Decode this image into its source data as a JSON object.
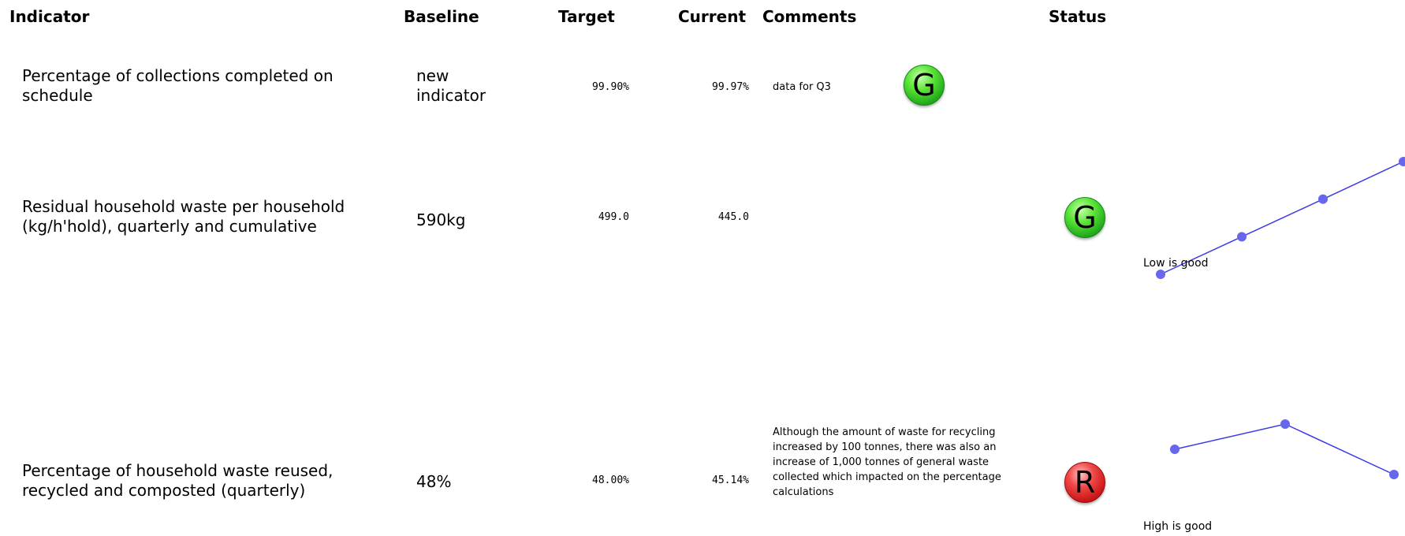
{
  "headers": {
    "indicator": "Indicator",
    "baseline": "Baseline",
    "target": "Target",
    "current": "Current",
    "comments": "Comments",
    "status": "Status"
  },
  "rows": [
    {
      "indicator": "Percentage of collections completed on schedule",
      "baseline": "new indicator",
      "target": "99.90%",
      "current": "99.97%",
      "comment": "data for Q3",
      "status": "G",
      "status_color": "#2ecc2e",
      "trend_note": "",
      "trend": []
    },
    {
      "indicator": "Residual household waste per household (kg/h'hold), quarterly and cumulative",
      "baseline": "590kg",
      "target": "499.0",
      "current": "445.0",
      "comment": "",
      "status": "G",
      "status_color": "#2ecc2e",
      "trend_note": "Low is good",
      "trend": [
        1,
        2,
        3,
        4
      ]
    },
    {
      "indicator": "Percentage of household waste reused, recycled and composted (quarterly)",
      "baseline": "48%",
      "target": "48.00%",
      "current": "45.14%",
      "comment": "Although the amount of waste for recycling increased by 100 tonnes, there was also an increase of 1,000 tonnes of general waste collected which impacted on the percentage calculations",
      "status": "R",
      "status_color": "#e02020",
      "trend_note": "High is good",
      "trend": [
        2,
        3,
        1
      ]
    }
  ],
  "colors": {
    "trend_line": "#3a3ae8",
    "trend_point": "#6666ee"
  }
}
